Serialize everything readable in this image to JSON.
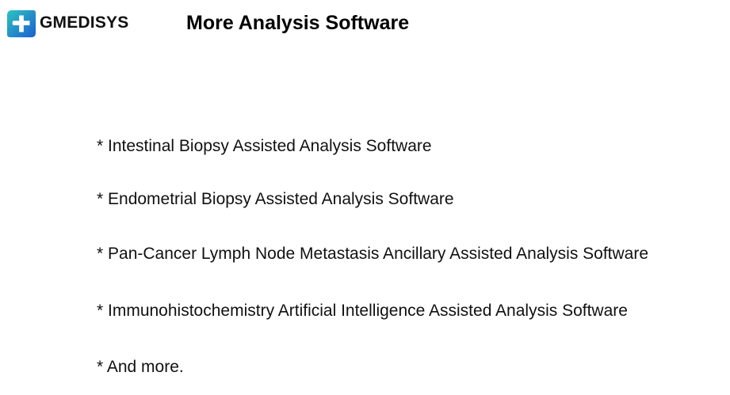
{
  "header": {
    "brand": "GMEDISYS",
    "title": "More Analysis Software",
    "logo_colors": [
      "#2ec4c0",
      "#1a6fd6"
    ]
  },
  "items": [
    "* Intestinal Biopsy Assisted Analysis Software",
    "* Endometrial Biopsy Assisted Analysis Software",
    "* Pan-Cancer Lymph Node Metastasis Ancillary Assisted Analysis Software",
    "* Immunohistochemistry Artificial Intelligence Assisted Analysis Software",
    "* And more."
  ]
}
